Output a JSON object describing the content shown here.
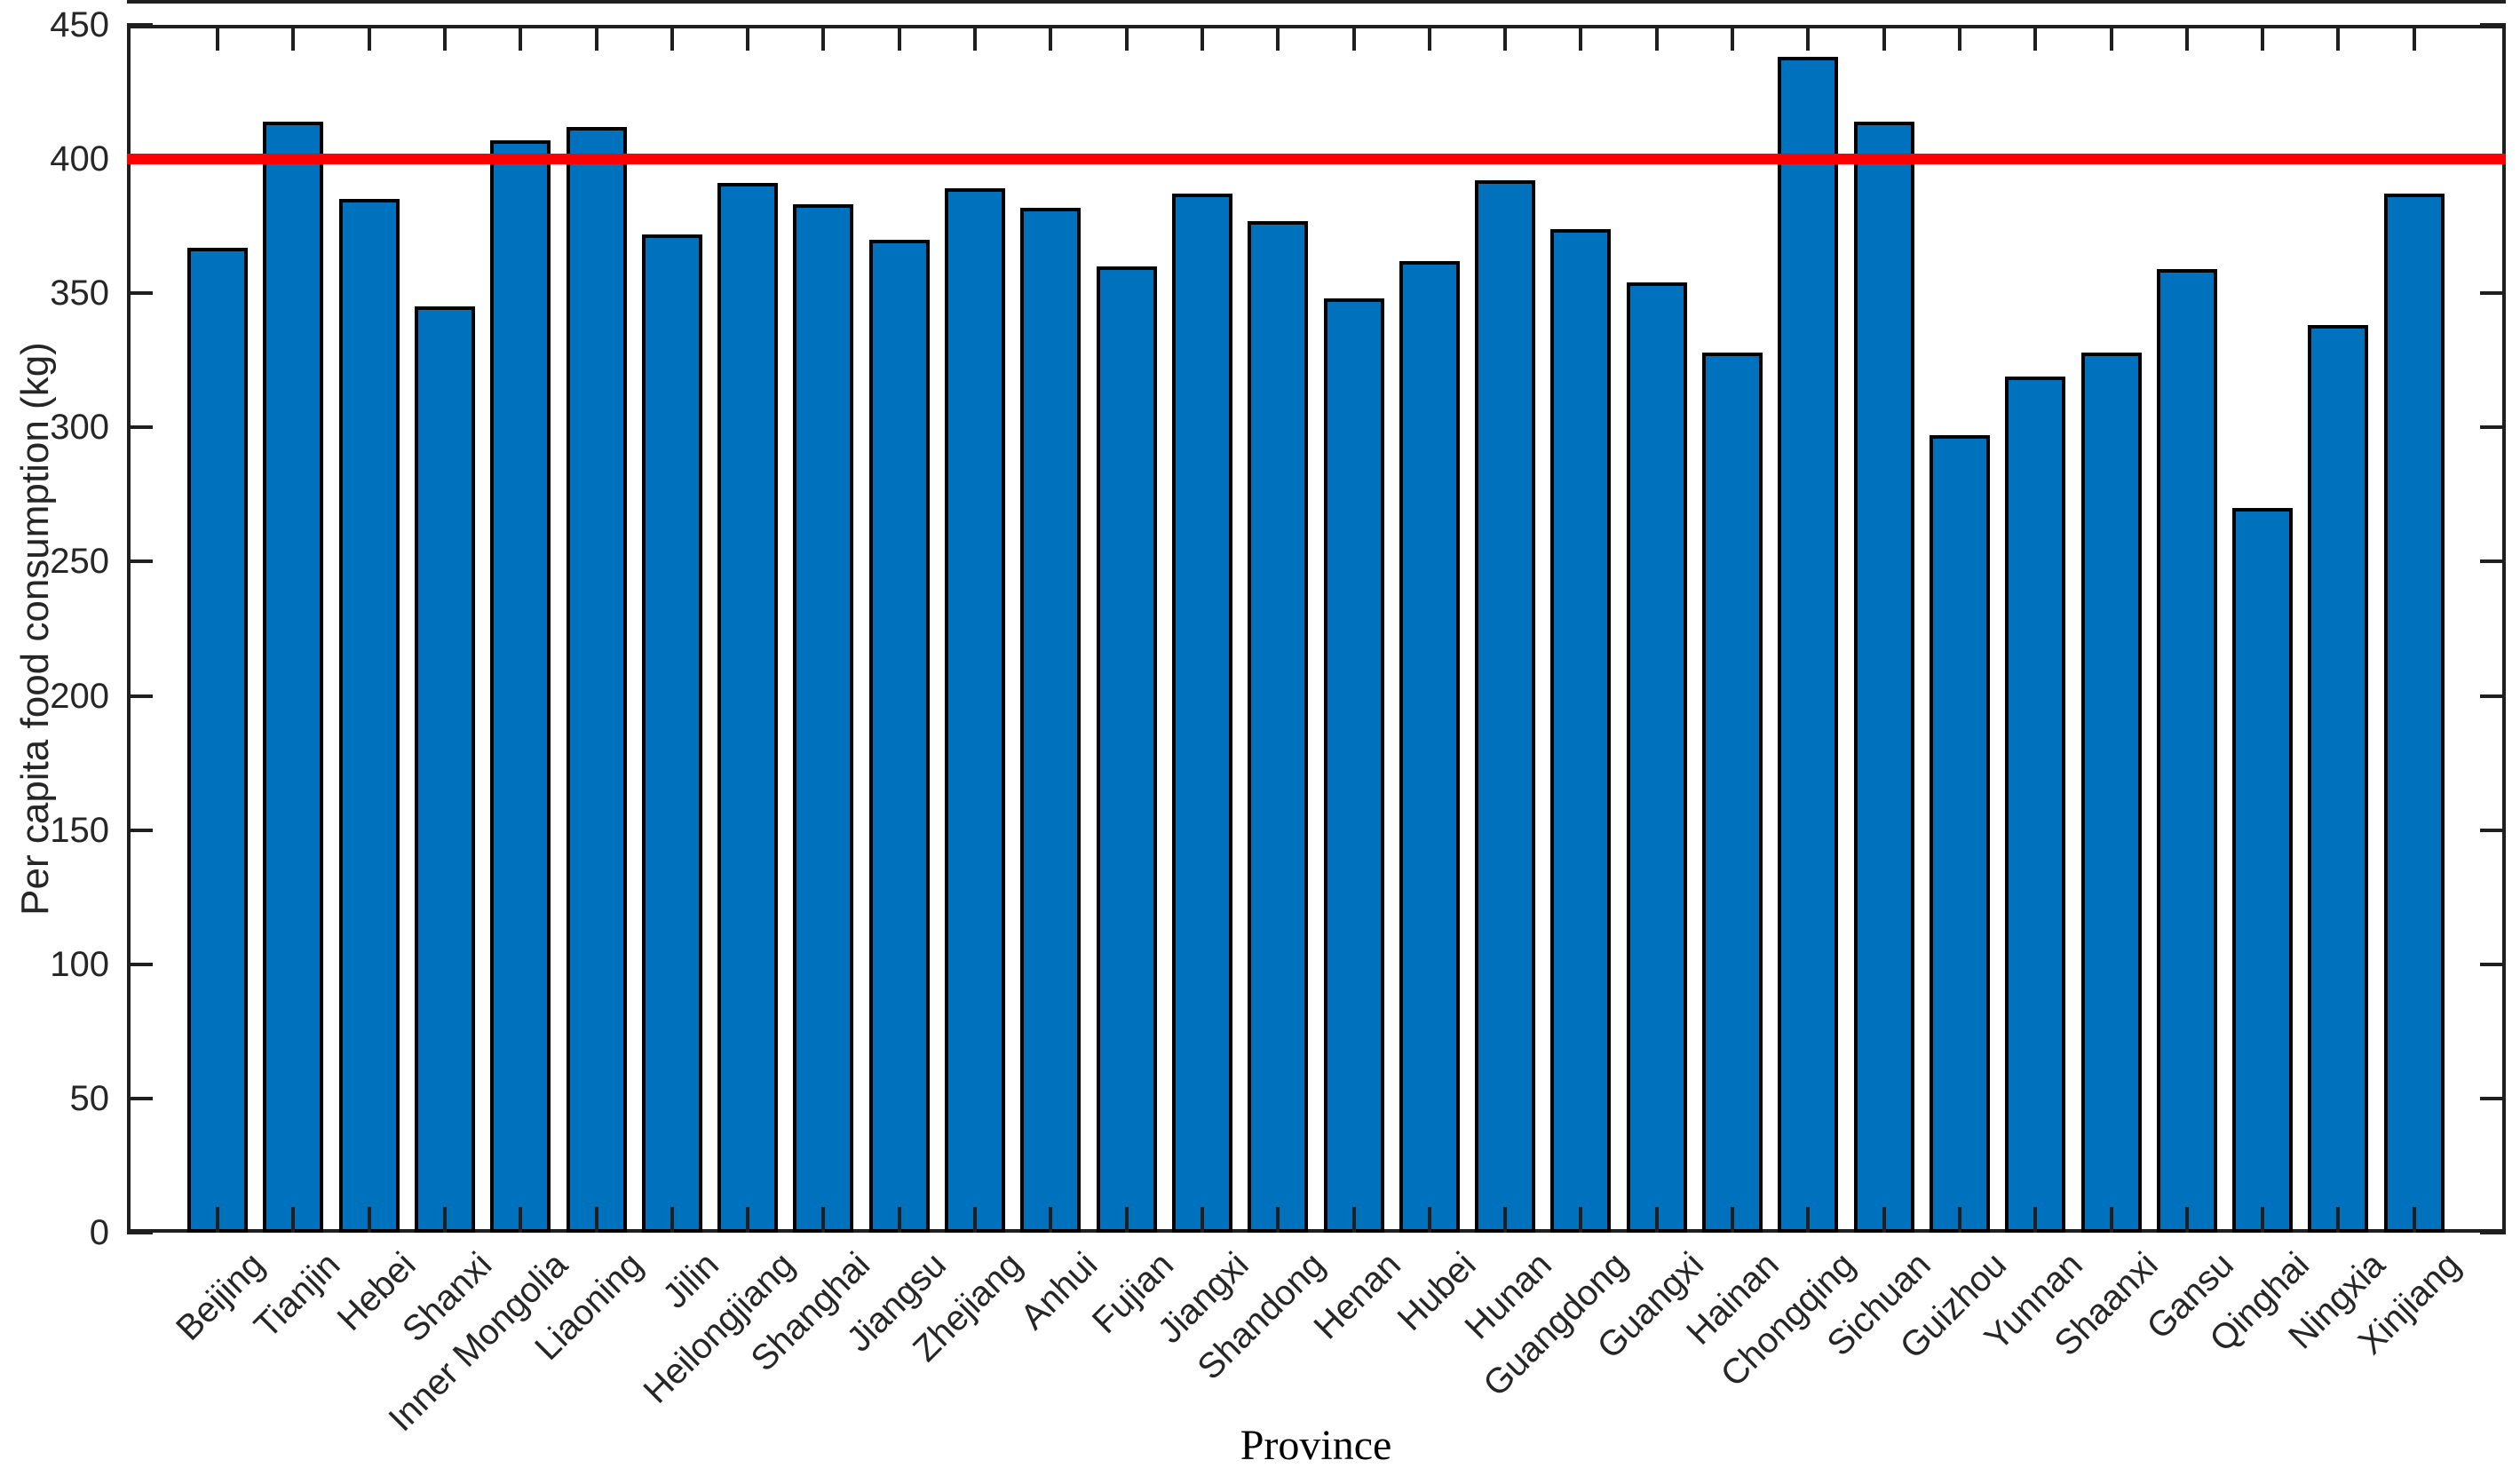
{
  "chart_data": {
    "type": "bar",
    "title": "",
    "xlabel": "Province",
    "ylabel": "Per capita food consumption (kg)",
    "categories": [
      "Beijing",
      "Tianjin",
      "Hebei",
      "Shanxi",
      "Inner Mongolia",
      "Liaoning",
      "Jilin",
      "Heilongjiang",
      "Shanghai",
      "Jiangsu",
      "Zhejiang",
      "Anhui",
      "Fujian",
      "Jiangxi",
      "Shandong",
      "Henan",
      "Hubei",
      "Hunan",
      "Guangdong",
      "Guangxi",
      "Hainan",
      "Chongqing",
      "Sichuan",
      "Guizhou",
      "Yunnan",
      "Shaanxi",
      "Gansu",
      "Qinghai",
      "Ningxia",
      "Xinjiang"
    ],
    "values": [
      367,
      414,
      385,
      345,
      407,
      412,
      372,
      391,
      383,
      370,
      389,
      382,
      360,
      387,
      377,
      348,
      362,
      392,
      374,
      354,
      328,
      438,
      414,
      297,
      319,
      328,
      359,
      270,
      338,
      387
    ],
    "ylim": [
      0,
      450
    ],
    "yticks": [
      0,
      50,
      100,
      150,
      200,
      250,
      300,
      350,
      400,
      450
    ],
    "grid": false,
    "legend": null,
    "bar_color": "#0072BD",
    "bar_edge_color": "#000000",
    "axis_color": "#1f1f1f",
    "reference_line": {
      "y": 400,
      "color": "#FF0000"
    }
  }
}
